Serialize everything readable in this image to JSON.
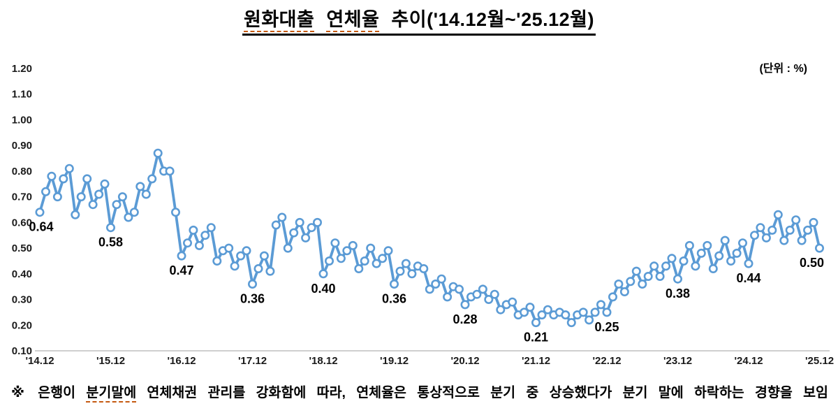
{
  "header": {
    "title_word1": "원화대출",
    "title_word2": "연체율",
    "title_rest": " 추이('14.12월~'25.12월)"
  },
  "unit_label": "(단위 : %)",
  "footnote": {
    "prefix": "※ 은행이 ",
    "highlight": "분기말에",
    "suffix": " 연체채권 관리를 강화함에 따라, 연체율은 통상적으로 분기 중 상승했다가 분기 말에 하락하는 경향을 보임"
  },
  "chart_data": {
    "type": "line",
    "title": "원화대출 연체율 추이('14.12월~'25.12월)",
    "unit": "%",
    "frequency": "monthly",
    "period_start": "2014-12",
    "period_end": "2025-12",
    "ylim": [
      0.1,
      1.2
    ],
    "grid": false,
    "legend": false,
    "line_color": "#5B9BD5",
    "marker": "circle-white-fill",
    "axis_text_color": "#1a1a1a",
    "baseline_color": "#bfbfbf",
    "y_ticks": [
      "1.20",
      "1.10",
      "1.00",
      "0.90",
      "0.80",
      "0.70",
      "0.60",
      "0.50",
      "0.40",
      "0.30",
      "0.20",
      "0.10"
    ],
    "x_ticks": [
      "'14.12",
      "'15.12",
      "'16.12",
      "'17.12",
      "'18.12",
      "'19.12",
      "'20.12",
      "'21.12",
      "'22.12",
      "'23.12",
      "'24.12",
      "'25.12"
    ],
    "values": [
      0.64,
      0.72,
      0.78,
      0.7,
      0.77,
      0.81,
      0.63,
      0.7,
      0.77,
      0.67,
      0.71,
      0.75,
      0.58,
      0.67,
      0.7,
      0.62,
      0.64,
      0.74,
      0.71,
      0.77,
      0.87,
      0.8,
      0.8,
      0.64,
      0.47,
      0.52,
      0.57,
      0.51,
      0.55,
      0.58,
      0.45,
      0.49,
      0.5,
      0.43,
      0.47,
      0.49,
      0.36,
      0.42,
      0.47,
      0.41,
      0.59,
      0.62,
      0.5,
      0.56,
      0.6,
      0.54,
      0.58,
      0.6,
      0.4,
      0.45,
      0.52,
      0.46,
      0.49,
      0.51,
      0.42,
      0.45,
      0.5,
      0.44,
      0.46,
      0.49,
      0.36,
      0.41,
      0.44,
      0.4,
      0.43,
      0.42,
      0.34,
      0.36,
      0.38,
      0.31,
      0.35,
      0.34,
      0.28,
      0.31,
      0.32,
      0.34,
      0.3,
      0.32,
      0.26,
      0.28,
      0.29,
      0.24,
      0.25,
      0.27,
      0.21,
      0.24,
      0.26,
      0.24,
      0.25,
      0.24,
      0.21,
      0.24,
      0.25,
      0.22,
      0.25,
      0.28,
      0.25,
      0.31,
      0.36,
      0.33,
      0.37,
      0.41,
      0.36,
      0.39,
      0.43,
      0.39,
      0.43,
      0.46,
      0.38,
      0.45,
      0.51,
      0.43,
      0.48,
      0.51,
      0.42,
      0.47,
      0.53,
      0.45,
      0.48,
      0.52,
      0.44,
      0.55,
      0.58,
      0.54,
      0.57,
      0.63,
      0.53,
      0.57,
      0.61,
      0.53,
      0.57,
      0.6,
      0.5
    ],
    "point_labels": [
      {
        "x_tick": "'14.12",
        "label": "0.64"
      },
      {
        "x_tick": "'15.12",
        "label": "0.58"
      },
      {
        "x_tick": "'16.12",
        "label": "0.47"
      },
      {
        "x_tick": "'17.12",
        "label": "0.36"
      },
      {
        "x_tick": "'18.12",
        "label": "0.40"
      },
      {
        "x_tick": "'19.12",
        "label": "0.36"
      },
      {
        "x_tick": "'20.12",
        "label": "0.28"
      },
      {
        "x_tick": "'21.12",
        "label": "0.21"
      },
      {
        "x_tick": "'22.12",
        "label": "0.25"
      },
      {
        "x_tick": "'23.12",
        "label": "0.38"
      },
      {
        "x_tick": "'24.12",
        "label": "0.44"
      },
      {
        "x_tick": "'25.12",
        "label": "0.50"
      }
    ]
  }
}
